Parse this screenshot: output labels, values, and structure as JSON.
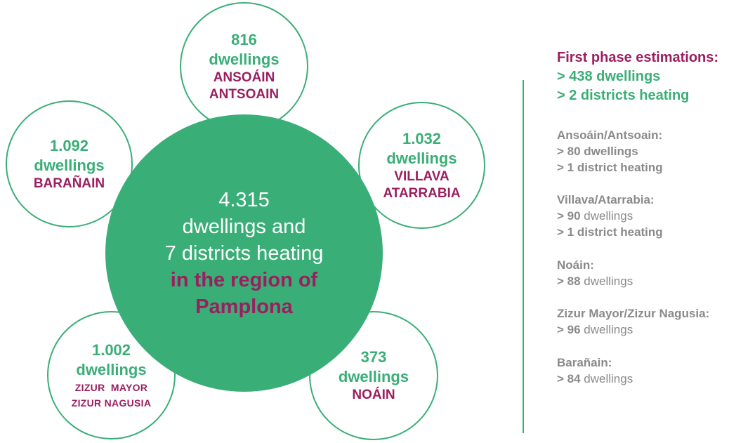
{
  "center": {
    "total": "4.315",
    "line1": "dwellings and",
    "line2": "7 districts heating",
    "highlight1": "in the region of",
    "highlight2": "Pamplona"
  },
  "circles": {
    "ansoain": {
      "value": "816",
      "unit": "dwellings",
      "place1": "ANSOÁIN",
      "place2": "ANTSOAIN"
    },
    "villava": {
      "value": "1.032",
      "unit": "dwellings",
      "place1": "VILLAVA",
      "place2": "ATARRABIA"
    },
    "baranain": {
      "value": "1.092",
      "unit": "dwellings",
      "place1": "BARAÑAIN"
    },
    "zizur": {
      "value": "1.002",
      "unit": "dwellings",
      "place1": "ZIZUR  MAYOR",
      "place2": "ZIZUR NAGUSIA"
    },
    "noain": {
      "value": "373",
      "unit": "dwellings",
      "place1": "NOÁIN"
    }
  },
  "first_phase": {
    "title": "First phase estimations:",
    "line1": "> 438 dwellings",
    "line2": "> 2 districts heating"
  },
  "estimations": {
    "ansoain": {
      "name": "Ansoáin/Antsoain:",
      "dwellings": "> 80 dwellings",
      "heating": "> 1 district heating"
    },
    "villava": {
      "name": "Villava/Atarrabia:",
      "dwellings_value": "> 90",
      "dwellings_unit": " dwellings",
      "heating": "> 1 district heating"
    },
    "noain": {
      "name": "Noáin:",
      "dwellings_value": "> 88",
      "dwellings_unit": " dwellings"
    },
    "zizur": {
      "name": "Zizur Mayor/Zizur Nagusia:",
      "dwellings_value": "> 96",
      "dwellings_unit": " dwellings"
    },
    "baranain": {
      "name": "Barañain:",
      "dwellings_value": "> 84",
      "dwellings_unit": " dwellings"
    }
  },
  "colors": {
    "green": "#3aae77",
    "magenta": "#9b1e5f",
    "gray": "#8a8a8a"
  }
}
